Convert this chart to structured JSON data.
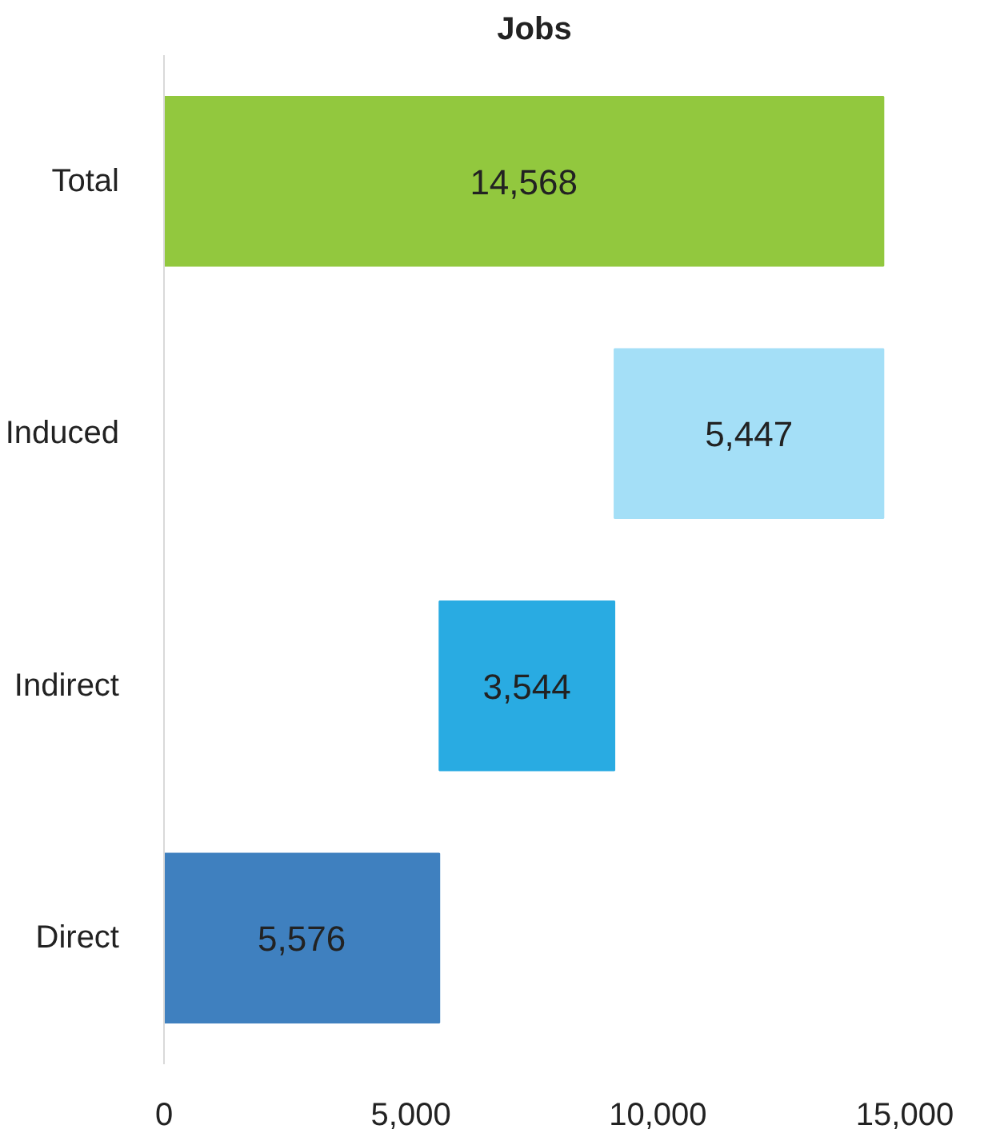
{
  "chart_data": {
    "type": "bar",
    "title": "Jobs",
    "orientation": "horizontal",
    "categories": [
      "Total",
      "Induced",
      "Indirect",
      "Direct"
    ],
    "values": [
      14568,
      5447,
      3544,
      5576
    ],
    "base": [
      0,
      9121,
      5577,
      0
    ],
    "colors": [
      "#92c83e",
      "#a4dff7",
      "#29abe2",
      "#3f80bf"
    ],
    "value_labels": [
      "14,568",
      "5,447",
      "3,544",
      "5,576"
    ],
    "xlim": [
      0,
      15000
    ],
    "xticks": [
      0,
      {
        "value": 5000,
        "label": "5,000"
      },
      {
        "value": 10000,
        "label": "10,000"
      },
      {
        "value": 15000,
        "label": "15,000"
      }
    ],
    "grid": false
  }
}
